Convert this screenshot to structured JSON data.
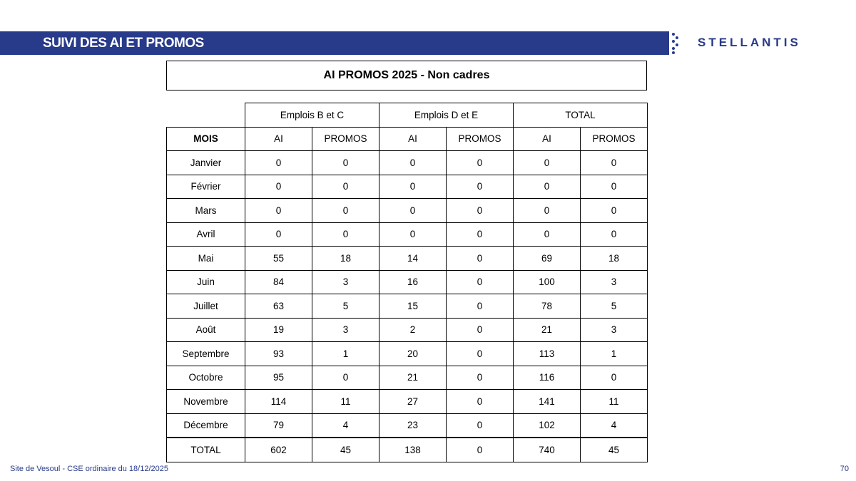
{
  "header": {
    "title": "SUIVI DES AI ET PROMOS",
    "logo": "STELLANTIS",
    "brand_color": "#283a8a"
  },
  "table": {
    "title": "AI PROMOS 2025 - Non cadres",
    "groups": [
      "Emplois B et C",
      "Emplois D et E",
      "TOTAL"
    ],
    "columns": [
      "MOIS",
      "AI",
      "PROMOS",
      "AI",
      "PROMOS",
      "AI",
      "PROMOS"
    ],
    "rows": [
      [
        "Janvier",
        "0",
        "0",
        "0",
        "0",
        "0",
        "0"
      ],
      [
        "Février",
        "0",
        "0",
        "0",
        "0",
        "0",
        "0"
      ],
      [
        "Mars",
        "0",
        "0",
        "0",
        "0",
        "0",
        "0"
      ],
      [
        "Avril",
        "0",
        "0",
        "0",
        "0",
        "0",
        "0"
      ],
      [
        "Mai",
        "55",
        "18",
        "14",
        "0",
        "69",
        "18"
      ],
      [
        "Juin",
        "84",
        "3",
        "16",
        "0",
        "100",
        "3"
      ],
      [
        "Juillet",
        "63",
        "5",
        "15",
        "0",
        "78",
        "5"
      ],
      [
        "Août",
        "19",
        "3",
        "2",
        "0",
        "21",
        "3"
      ],
      [
        "Septembre",
        "93",
        "1",
        "20",
        "0",
        "113",
        "1"
      ],
      [
        "Octobre",
        "95",
        "0",
        "21",
        "0",
        "116",
        "0"
      ],
      [
        "Novembre",
        "114",
        "11",
        "27",
        "0",
        "141",
        "11"
      ],
      [
        "Décembre",
        "79",
        "4",
        "23",
        "0",
        "102",
        "4"
      ],
      [
        "TOTAL",
        "602",
        "45",
        "138",
        "0",
        "740",
        "45"
      ]
    ]
  },
  "footer": {
    "text": "Site de Vesoul - CSE ordinaire du 18/12/2025",
    "page": "70"
  }
}
